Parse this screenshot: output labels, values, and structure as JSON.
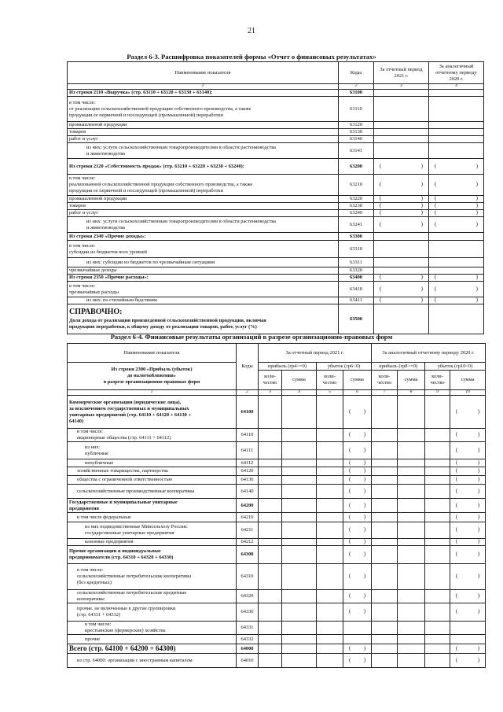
{
  "page_number": "21",
  "section63": {
    "title": "Раздел 6-3. Расшифровка показателей формы «Отчет о финансовых результатах»",
    "headers": {
      "name": "Наименование показателя",
      "codes": "Коды",
      "current": "За отчетный период 2021 г.",
      "previous": "За аналогичный отчетному периоду 2020 г."
    },
    "col_numbers": [
      "1",
      "2",
      "3",
      "4"
    ],
    "rows": [
      {
        "code": "63100",
        "label": "Из строки 2110 «Выручка» (стр. 63110 + 63120 + 63130 + 63140):",
        "bold": true,
        "indent": 0,
        "neg": false
      },
      {
        "code": "63110",
        "label": "в том числе:\nот реализации сельскохозяйственной продукции собственного производства, а также\nпродукции ее первичной и последующей (промышленной) переработки",
        "bold": false,
        "indent": 0,
        "neg": false
      },
      {
        "code": "63120",
        "label": "промышленной продукции",
        "bold": false,
        "indent": 0,
        "neg": false
      },
      {
        "code": "63130",
        "label": "товаров",
        "bold": false,
        "indent": 0,
        "neg": false
      },
      {
        "code": "63140",
        "label": "работ и услуг",
        "bold": false,
        "indent": 0,
        "neg": false
      },
      {
        "code": "63141",
        "label": "из них: услуги сельскохозяйственным товаропроизводителям в области растениеводства\nи животноводства",
        "bold": false,
        "indent": 1,
        "neg": false
      },
      {
        "code": "63200",
        "label": "Из строки 2120 «Себестоимость продаж» (стр. 63210 + 63220 + 63230 + 63240):",
        "bold": true,
        "indent": 0,
        "neg": true
      },
      {
        "code": "63210",
        "label": "в том числе:\nреализованной сельскохозяйственной продукции собственного производства, а также\nпродукции ее первичной и последующей (промышленной) переработки",
        "bold": false,
        "indent": 0,
        "neg": true
      },
      {
        "code": "63220",
        "label": "промышленной продукции",
        "bold": false,
        "indent": 0,
        "neg": true
      },
      {
        "code": "63230",
        "label": "товаров",
        "bold": false,
        "indent": 0,
        "neg": true
      },
      {
        "code": "63240",
        "label": "работ и услуг",
        "bold": false,
        "indent": 0,
        "neg": true
      },
      {
        "code": "63241",
        "label": "из них: услуги сельскохозяйственным товаропроизводителям в области растениеводства\nи животноводства",
        "bold": false,
        "indent": 1,
        "neg": true
      },
      {
        "code": "63300",
        "label": "Из строки  2340 «Прочие доходы»:",
        "bold": true,
        "indent": 0,
        "neg": false
      },
      {
        "code": "63310",
        "label": "в том числе:\nсубсидии из бюджетов всех уровней",
        "bold": false,
        "indent": 0,
        "neg": false
      },
      {
        "code": "63311",
        "label": "из них: субсидии из бюджетов по чрезвычайным ситуациям",
        "bold": false,
        "indent": 1,
        "neg": false
      },
      {
        "code": "63320",
        "label": "чрезвычайные доходы",
        "bold": false,
        "indent": 0,
        "neg": false
      },
      {
        "code": "63400",
        "label": "Из строки 2350 «Прочие расходы»:",
        "bold": true,
        "indent": 0,
        "neg": true
      },
      {
        "code": "63410",
        "label": "в том числе:\nчрезвычайные расходы",
        "bold": false,
        "indent": 0,
        "neg": true
      },
      {
        "code": "63411",
        "label": "из них: по стихийным бедствиям",
        "bold": false,
        "indent": 1,
        "neg": true
      }
    ],
    "reference": {
      "heading": "СПРАВОЧНО:",
      "label": "Доля дохода от реализации произведенной сельскохозяйственной продукции, включая\nпродукцию переработки, к общему доходу от реализации товаров, работ, услуг  (%)",
      "code": "63500"
    }
  },
  "section64": {
    "title": "Раздел 6-4. Финансовые результаты организаций в разрезе организационно-правовых форм",
    "headers": {
      "name": "Наименование показателя",
      "name_sub": "Из строки 2300 «Прибыль (убыток)\nдо налогообложения»\nв разрезе организационно-правовых форм",
      "codes": "Коды",
      "current": "За отчетный период 2021 г.",
      "previous": "За аналогичный отчетному периоду 2020 г.",
      "profit_cur": "прибыль (гр4>=0)",
      "loss_cur": "убыток (гр6<0)",
      "profit_prev": "прибыль (гр8>=0)",
      "loss_prev": "убыток (гр10<0)",
      "qty": "коли-\nчество",
      "sum": "сумма"
    },
    "col_numbers": [
      "1",
      "2",
      "3",
      "4",
      "5",
      "6",
      "7",
      "8",
      "9",
      "10"
    ],
    "rows": [
      {
        "code": "64100",
        "label": "Коммерческие организации (юридические лица),\nза исключением государственных и муниципальных\nунитарных предприятий (стр. 64110 + 64120 + 64130 +\n64140)",
        "bold": true,
        "indent": 0,
        "neg": true
      },
      {
        "code": "64110",
        "label": "в том числе:\nакционерные общества (стр. 64111 + 64112)",
        "bold": false,
        "indent": 1,
        "neg": true
      },
      {
        "code": "64111",
        "label": "из них:\nпубличные",
        "bold": false,
        "indent": 2,
        "neg": true
      },
      {
        "code": "64112",
        "label": "непубличные",
        "bold": false,
        "indent": 2,
        "neg": true
      },
      {
        "code": "64120",
        "label": "хозяйственные товарищества, партнерства",
        "bold": false,
        "indent": 1,
        "neg": true
      },
      {
        "code": "64130",
        "label": "общества с ограниченной ответственностью",
        "bold": false,
        "indent": 1,
        "neg": true
      },
      {
        "code": "64140",
        "label": "сельскохозяйственные производственные кооперативы",
        "bold": false,
        "indent": 1,
        "neg": true
      },
      {
        "code": "64200",
        "label": "Государственные и муниципальные унитарные\nпредприятия",
        "bold": true,
        "indent": 0,
        "neg": true
      },
      {
        "code": "64210",
        "label": "в том числе федеральные",
        "bold": false,
        "indent": 1,
        "neg": true
      },
      {
        "code": "64211",
        "label": "из них подведомственные Минсельхозу России:\nгосударственные унитарные предприятия",
        "bold": false,
        "indent": 2,
        "neg": true
      },
      {
        "code": "64212",
        "label": "казенные предприятия",
        "bold": false,
        "indent": 2,
        "neg": true
      },
      {
        "code": "64300",
        "label": "Прочие организации и индивидуальные\nпредприниматели (стр. 64310 + 64320 + 64330)",
        "bold": true,
        "indent": 0,
        "neg": true
      },
      {
        "code": "64310",
        "label": "в том числе:\nсельскохозяйственные потребительские кооперативы\n(без кредитных)",
        "bold": false,
        "indent": 1,
        "neg": true
      },
      {
        "code": "64320",
        "label": "сельскохозяйственные потребительские кредитные\nкооперативы",
        "bold": false,
        "indent": 1,
        "neg": true
      },
      {
        "code": "64330",
        "label": "прочие, не включенные в другие группировки\n(стр. 64331 + 64332)",
        "bold": false,
        "indent": 1,
        "neg": true
      },
      {
        "code": "64331",
        "label": "в том числе:\nкрестьянские (фермерские) хозяйства",
        "bold": false,
        "indent": 2,
        "neg": false
      },
      {
        "code": "64332",
        "label": "прочие",
        "bold": false,
        "indent": 2,
        "neg": false
      },
      {
        "code": "64000",
        "label": "Всего (стр. 64100 + 64200 + 64300)",
        "bold": true,
        "indent": 0,
        "neg": true,
        "large": true
      },
      {
        "code": "64010",
        "label": "из стр. 64000: организации с иностранным капиталом",
        "bold": false,
        "indent": 1,
        "neg": true
      }
    ]
  }
}
